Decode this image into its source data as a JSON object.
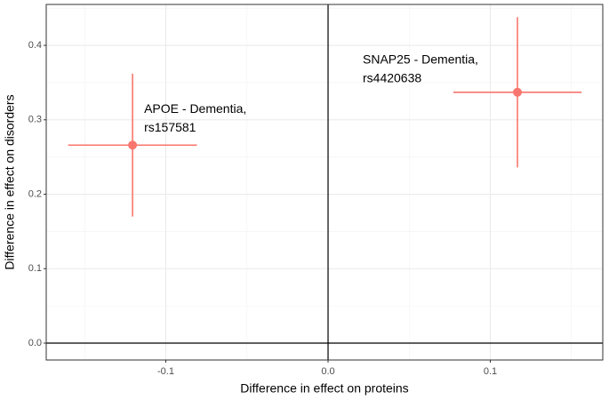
{
  "chart_data": {
    "type": "scatter",
    "xlabel": "Difference in effect on proteins",
    "ylabel": "Difference in effect on disorders",
    "series": [
      {
        "color": "#F8766D",
        "x": [
          -0.1205,
          0.1167
        ],
        "y": [
          0.266,
          0.337
        ],
        "x_err": [
          0.0397,
          0.0395
        ],
        "y_err": [
          0.096,
          0.101
        ],
        "labels": [
          [
            "APOE - Dementia,",
            "rs157581"
          ],
          [
            "SNAP25 - Dementia,",
            "rs4420638"
          ]
        ]
      }
    ],
    "xlim": [
      -0.1737,
      0.1693
    ],
    "ylim": [
      -0.0227,
      0.455
    ],
    "xticks": [
      {
        "value": -0.1,
        "label": "-0.1"
      },
      {
        "value": 0,
        "label": "0.0"
      },
      {
        "value": 0.1,
        "label": "0.1"
      }
    ],
    "yticks": [
      {
        "value": 0,
        "label": "0.0"
      },
      {
        "value": 0.1,
        "label": "0.1"
      },
      {
        "value": 0.2,
        "label": "0.2"
      },
      {
        "value": 0.3,
        "label": "0.3"
      },
      {
        "value": 0.4,
        "label": "0.4"
      }
    ],
    "hline": 0,
    "vline": 0,
    "grid": true
  }
}
